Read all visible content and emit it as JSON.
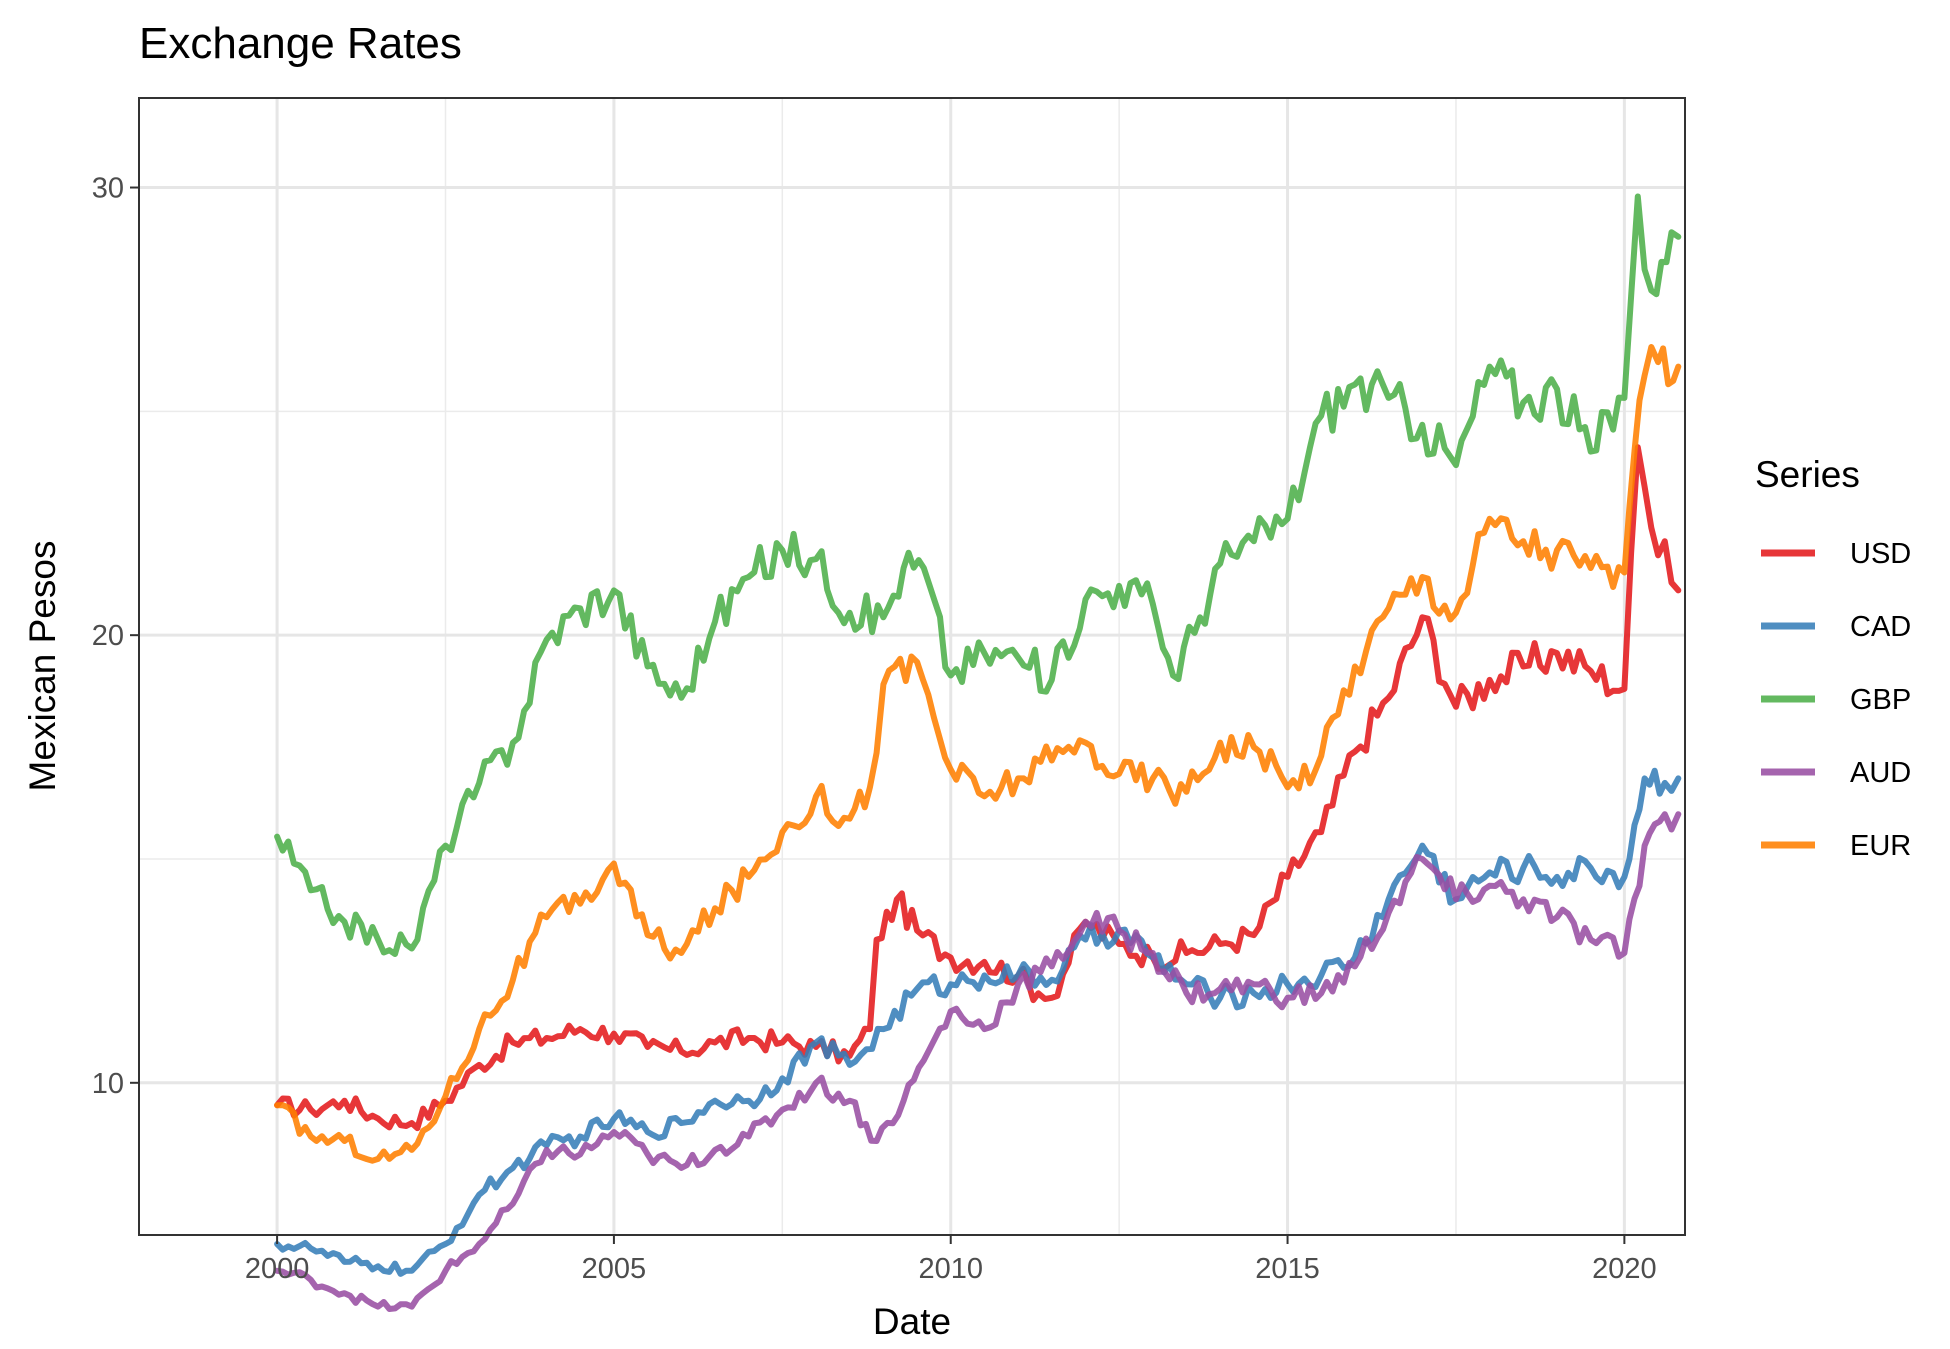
{
  "chart_data": {
    "type": "line",
    "title": "Exchange Rates",
    "xlabel": "Date",
    "ylabel": "Mexican Pesos",
    "xlim": [
      1997.95,
      2020.9
    ],
    "ylim": [
      6.6,
      32.0
    ],
    "x_ticks": [
      2000,
      2005,
      2010,
      2015,
      2020
    ],
    "x_tick_labels": [
      "2000",
      "2005",
      "2010",
      "2015",
      "2020"
    ],
    "y_ticks": [
      10,
      20,
      30
    ],
    "y_tick_labels": [
      "10",
      "20",
      "30"
    ],
    "grid": true,
    "legend": {
      "title": "Series",
      "position": "right"
    },
    "series": [
      {
        "name": "USD",
        "color": "#e41a1c",
        "x": [
          2000,
          2000.5,
          2001,
          2001.5,
          2002,
          2002.5,
          2003,
          2003.5,
          2004,
          2004.5,
          2005,
          2005.5,
          2006,
          2006.5,
          2007,
          2007.5,
          2008,
          2008.5,
          2008.8,
          2008.9,
          2009.2,
          2009.5,
          2010,
          2010.5,
          2011,
          2011.3,
          2011.5,
          2012,
          2012.5,
          2013,
          2013.5,
          2014,
          2014.5,
          2015,
          2015.5,
          2016,
          2016.5,
          2017,
          2017.5,
          2018,
          2018.5,
          2019,
          2019.5,
          2020,
          2020.2,
          2020.4,
          2020.6,
          2020.8
        ],
        "y": [
          9.5,
          9.4,
          9.6,
          9.2,
          9.1,
          9.6,
          10.4,
          10.9,
          11.0,
          11.2,
          11.1,
          10.8,
          10.7,
          10.9,
          11.0,
          10.9,
          10.8,
          10.6,
          11.2,
          13.2,
          14.1,
          13.4,
          12.8,
          12.7,
          12.4,
          12.0,
          11.9,
          13.6,
          13.1,
          12.8,
          12.9,
          13.1,
          13.3,
          14.6,
          15.6,
          17.4,
          18.6,
          20.4,
          18.4,
          19.0,
          19.3,
          19.6,
          19.2,
          18.8,
          24.2,
          22.4,
          22.1,
          21.0
        ]
      },
      {
        "name": "CAD",
        "color": "#377eb8",
        "x": [
          2000,
          2000.5,
          2001,
          2001.5,
          2002,
          2002.5,
          2003,
          2003.5,
          2004,
          2004.5,
          2005,
          2005.5,
          2006,
          2006.5,
          2007,
          2007.5,
          2008,
          2008.5,
          2009,
          2009.5,
          2010,
          2010.5,
          2011,
          2011.5,
          2012,
          2012.5,
          2013,
          2013.5,
          2014,
          2014.5,
          2015,
          2015.5,
          2016,
          2016.5,
          2017,
          2017.5,
          2018,
          2018.5,
          2019,
          2019.5,
          2020,
          2020.3,
          2020.6,
          2020.8
        ],
        "y": [
          6.4,
          6.3,
          6.0,
          5.9,
          5.8,
          6.4,
          7.5,
          8.1,
          8.6,
          8.8,
          9.2,
          8.9,
          9.1,
          9.6,
          9.6,
          10.1,
          10.9,
          10.4,
          11.2,
          12.1,
          12.2,
          12.4,
          12.4,
          12.3,
          13.2,
          13.4,
          12.8,
          12.2,
          11.9,
          12.0,
          12.2,
          12.4,
          12.8,
          14.1,
          15.3,
          14.1,
          14.7,
          14.8,
          14.6,
          14.8,
          14.6,
          16.8,
          16.7,
          16.8
        ]
      },
      {
        "name": "GBP",
        "color": "#4daf4a",
        "x": [
          2000,
          2000.5,
          2001,
          2001.5,
          2002,
          2002.5,
          2003,
          2003.5,
          2004,
          2004.5,
          2005,
          2005.5,
          2006,
          2006.5,
          2007,
          2007.5,
          2008,
          2008.5,
          2009,
          2009.3,
          2009.6,
          2010,
          2010.5,
          2011,
          2011.5,
          2012,
          2012.5,
          2013,
          2013.3,
          2013.7,
          2014,
          2014.5,
          2015,
          2015.5,
          2016,
          2016.5,
          2017,
          2017.5,
          2018,
          2018.5,
          2019,
          2019.5,
          2020,
          2020.2,
          2020.4,
          2020.7,
          2020.8
        ],
        "y": [
          15.5,
          14.3,
          13.6,
          13.2,
          13.0,
          15.3,
          16.7,
          17.6,
          19.9,
          20.6,
          21.0,
          19.3,
          18.6,
          20.3,
          21.3,
          21.9,
          21.7,
          20.5,
          20.4,
          21.5,
          21.5,
          19.1,
          19.6,
          19.5,
          19.0,
          20.8,
          21.1,
          20.7,
          19.1,
          20.4,
          21.6,
          22.1,
          22.6,
          24.9,
          25.6,
          25.3,
          24.7,
          23.8,
          26.0,
          25.2,
          25.5,
          24.1,
          25.3,
          29.8,
          27.7,
          29.0,
          28.9
        ]
      },
      {
        "name": "AUD",
        "color": "#984ea3",
        "x": [
          2000,
          2000.5,
          2001,
          2001.5,
          2002,
          2002.5,
          2003,
          2003.5,
          2004,
          2004.5,
          2005,
          2005.5,
          2006,
          2006.5,
          2007,
          2007.5,
          2008,
          2008.5,
          2008.9,
          2009.3,
          2009.6,
          2010,
          2010.5,
          2011,
          2011.5,
          2012,
          2012.5,
          2013,
          2013.5,
          2014,
          2014.5,
          2015,
          2015.5,
          2016,
          2016.5,
          2017,
          2017.5,
          2018,
          2018.5,
          2019,
          2019.5,
          2020,
          2020.3,
          2020.6,
          2020.8
        ],
        "y": [
          5.8,
          5.6,
          5.3,
          5.0,
          5.0,
          5.8,
          6.4,
          7.3,
          8.5,
          8.4,
          8.9,
          8.4,
          8.1,
          8.5,
          8.8,
          9.4,
          10.0,
          9.6,
          8.7,
          9.6,
          10.5,
          11.6,
          11.2,
          12.2,
          12.6,
          13.6,
          13.4,
          12.9,
          12.0,
          12.1,
          12.2,
          11.9,
          12.0,
          12.6,
          13.8,
          15.0,
          14.1,
          14.4,
          14.1,
          13.7,
          13.2,
          12.9,
          15.3,
          16.0,
          16.0
        ]
      },
      {
        "name": "EUR",
        "color": "#ff7f00",
        "x": [
          2000,
          2000.5,
          2001,
          2001.5,
          2002,
          2002.5,
          2003,
          2003.5,
          2004,
          2004.5,
          2005,
          2005.5,
          2006,
          2006.5,
          2007,
          2007.5,
          2008,
          2008.5,
          2008.8,
          2009,
          2009.5,
          2010,
          2010.5,
          2011,
          2011.5,
          2012,
          2012.5,
          2013,
          2013.5,
          2014,
          2014.5,
          2015,
          2015.5,
          2016,
          2016.5,
          2017,
          2017.5,
          2018,
          2018.5,
          2019,
          2019.5,
          2020,
          2020.3,
          2020.5,
          2020.8
        ],
        "y": [
          9.5,
          8.8,
          8.7,
          8.3,
          8.5,
          9.7,
          11.2,
          12.3,
          13.7,
          14.0,
          14.9,
          13.3,
          12.9,
          13.9,
          14.6,
          15.6,
          16.4,
          15.9,
          16.6,
          18.9,
          19.4,
          17.0,
          16.4,
          16.8,
          17.2,
          17.6,
          16.9,
          16.8,
          16.5,
          17.6,
          17.5,
          16.6,
          17.3,
          19.3,
          20.6,
          21.3,
          20.5,
          22.6,
          22.1,
          21.9,
          21.5,
          21.4,
          25.8,
          26.1,
          26.0
        ]
      }
    ]
  }
}
